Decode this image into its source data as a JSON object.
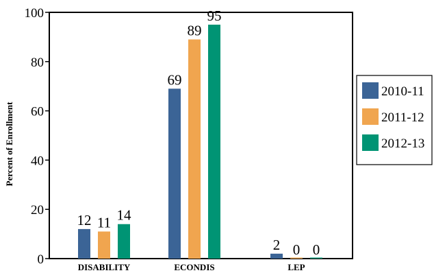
{
  "chart_data": {
    "type": "bar",
    "title": "",
    "xlabel": "",
    "ylabel": "Percent of Enrollment",
    "ylim": [
      0,
      100
    ],
    "yticks": [
      0,
      20,
      40,
      60,
      80,
      100
    ],
    "grid": false,
    "legend_position": "right",
    "categories": [
      "DISABILITY",
      "ECONDIS",
      "LEP"
    ],
    "series": [
      {
        "name": "2010-11",
        "color": "#3b6496",
        "values": [
          12,
          69,
          2
        ],
        "labels": [
          "12",
          "69",
          "2"
        ]
      },
      {
        "name": "2011-12",
        "color": "#f0a54f",
        "values": [
          11,
          89,
          0
        ],
        "labels": [
          "11",
          "89",
          "0"
        ]
      },
      {
        "name": "2012-13",
        "color": "#009474",
        "values": [
          14,
          95,
          0
        ],
        "labels": [
          "14",
          "95",
          "0"
        ]
      }
    ]
  }
}
